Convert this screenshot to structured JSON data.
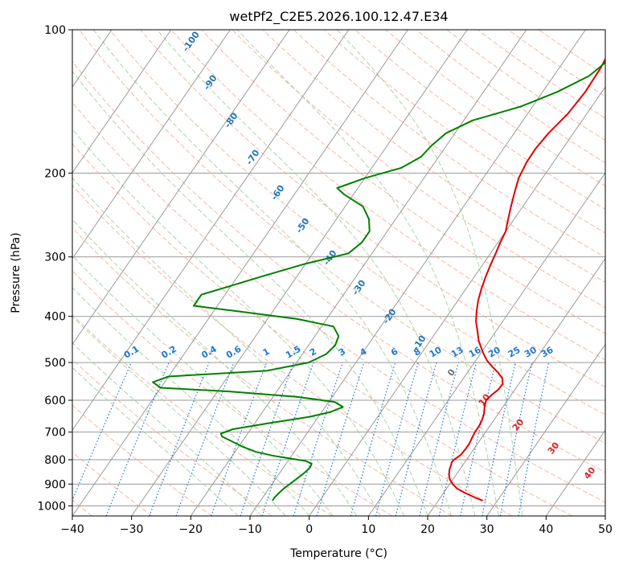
{
  "chart_data": {
    "type": "line",
    "title": "wetPf2_C2E5.2026.100.12.47.E34",
    "xlabel": "Temperature (°C)",
    "ylabel": "Pressure (hPa)",
    "xlim": [
      -40,
      50
    ],
    "ylim": [
      1050,
      100
    ],
    "y_scale": "log",
    "x_ticks": [
      -40,
      -30,
      -20,
      -10,
      0,
      10,
      20,
      30,
      40,
      50
    ],
    "y_ticks": [
      100,
      200,
      300,
      400,
      500,
      600,
      700,
      800,
      900,
      1000
    ],
    "grid": true,
    "colors": {
      "temperature": "#e00000",
      "dewpoint": "#008000",
      "dry_adiabat": "#f5a58a",
      "moist_adiabat": "#a0d0a0",
      "mixing_ratio": "#1f77d4",
      "isotherm": "#9a9a9a",
      "skew_isotherm_label": "#1f77b4",
      "warm_label": "#d62728"
    },
    "series": [
      {
        "key": "temperature",
        "pressure": [
          975,
          960,
          940,
          920,
          900,
          880,
          860,
          840,
          820,
          810,
          800,
          790,
          780,
          760,
          740,
          720,
          700,
          680,
          660,
          640,
          620,
          600,
          585,
          570,
          555,
          540,
          525,
          510,
          495,
          480,
          465,
          450,
          430,
          410,
          390,
          370,
          350,
          330,
          310,
          295,
          280,
          265,
          250,
          235,
          220,
          205,
          190,
          178,
          165,
          150,
          135,
          120,
          110,
          100
        ],
        "temperature": [
          27.5,
          25.8,
          23.7,
          21.8,
          20.5,
          19.5,
          18.8,
          18.3,
          18.0,
          17.8,
          17.9,
          18.2,
          18.5,
          18.6,
          18.6,
          18.4,
          18.2,
          18.2,
          18.0,
          17.6,
          16.9,
          16.4,
          16.7,
          17.2,
          17.3,
          16.6,
          15.2,
          13.5,
          11.9,
          10.6,
          9.4,
          8.2,
          6.9,
          5.5,
          4.4,
          3.4,
          2.6,
          1.9,
          1.3,
          0.9,
          0.4,
          0.0,
          -1.0,
          -2.0,
          -3.0,
          -4.0,
          -4.5,
          -4.6,
          -4.2,
          -3.2,
          -2.8,
          -3.0,
          -3.5,
          -4.0
        ]
      },
      {
        "key": "dewpoint",
        "pressure": [
          975,
          960,
          940,
          920,
          900,
          880,
          860,
          845,
          830,
          815,
          805,
          795,
          785,
          770,
          750,
          730,
          715,
          705,
          690,
          670,
          650,
          635,
          620,
          605,
          590,
          575,
          565,
          550,
          535,
          520,
          500,
          480,
          460,
          440,
          420,
          405,
          390,
          380,
          360,
          345,
          330,
          310,
          295,
          280,
          265,
          250,
          235,
          222,
          215,
          205,
          195,
          185,
          175,
          165,
          155,
          145,
          135,
          125,
          115,
          105,
          100
        ],
        "temperature": [
          -8.0,
          -8.0,
          -7.8,
          -7.5,
          -7.0,
          -6.5,
          -6.0,
          -5.7,
          -5.5,
          -5.7,
          -7.0,
          -10.0,
          -13.0,
          -16.5,
          -19.5,
          -22.0,
          -24.0,
          -24.5,
          -23.0,
          -17.5,
          -11.5,
          -8.5,
          -7.0,
          -9.0,
          -16.0,
          -28.0,
          -40.0,
          -42.0,
          -40.0,
          -24.0,
          -18.0,
          -16.0,
          -15.5,
          -16.0,
          -18.0,
          -25.0,
          -36.0,
          -44.0,
          -44.0,
          -40.0,
          -36.0,
          -30.0,
          -24.0,
          -23.0,
          -23.0,
          -24.5,
          -27.0,
          -31.5,
          -33.5,
          -30.0,
          -25.0,
          -23.0,
          -22.5,
          -21.5,
          -18.5,
          -12.0,
          -7.5,
          -4.0,
          -2.5,
          -1.0,
          -0.5
        ]
      }
    ],
    "skew_isotherm_labels": [
      "-100",
      "-90",
      "-80",
      "-70",
      "-60",
      "-50",
      "-40",
      "-30",
      "-20",
      "-10"
    ],
    "mixing_ratio_labels": [
      "0.1",
      "0.2",
      "0.4",
      "0.6",
      "1",
      "1.5",
      "2",
      "3",
      "4",
      "6",
      "8",
      "10",
      "13",
      "16",
      "20",
      "25",
      "30",
      "36"
    ],
    "warm_isotherm_labels": [
      "0",
      "10",
      "20",
      "30",
      "40"
    ]
  }
}
